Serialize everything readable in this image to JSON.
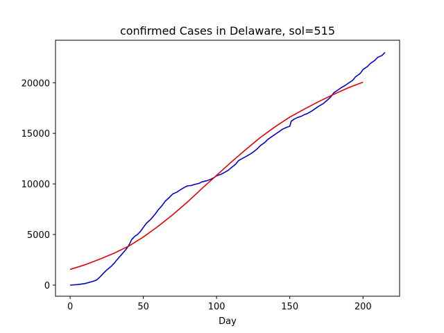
{
  "chart_data": {
    "type": "line",
    "title": "confirmed Cases in Delaware, sol=515",
    "xlabel": "Day",
    "ylabel": "",
    "xlim": [
      -10,
      225
    ],
    "ylim": [
      -1100,
      24200
    ],
    "xticks": [
      0,
      50,
      100,
      150,
      200
    ],
    "yticks": [
      0,
      5000,
      10000,
      15000,
      20000
    ],
    "grid": false,
    "series": [
      {
        "color": "#0000cc",
        "x": [
          0,
          5,
          10,
          15,
          18,
          20,
          22,
          25,
          28,
          30,
          32,
          35,
          38,
          40,
          42,
          44,
          46,
          48,
          50,
          52,
          55,
          58,
          60,
          63,
          65,
          68,
          70,
          73,
          75,
          78,
          80,
          83,
          85,
          88,
          90,
          93,
          95,
          98,
          100,
          103,
          105,
          108,
          110,
          113,
          115,
          118,
          120,
          123,
          125,
          128,
          130,
          133,
          135,
          138,
          140,
          143,
          145,
          148,
          150,
          151,
          153,
          155,
          158,
          160,
          162,
          165,
          168,
          170,
          173,
          175,
          178,
          180,
          183,
          185,
          188,
          190,
          193,
          195,
          198,
          200,
          203,
          205,
          208,
          210,
          213,
          215
        ],
        "y": [
          0,
          50,
          150,
          350,
          500,
          750,
          1050,
          1500,
          1850,
          2150,
          2500,
          3000,
          3500,
          3900,
          4500,
          4800,
          5000,
          5300,
          5700,
          6100,
          6500,
          7000,
          7400,
          7900,
          8300,
          8700,
          9000,
          9200,
          9400,
          9650,
          9800,
          9850,
          9950,
          10050,
          10200,
          10300,
          10400,
          10600,
          10800,
          10950,
          11100,
          11350,
          11600,
          11950,
          12300,
          12550,
          12700,
          12950,
          13150,
          13500,
          13800,
          14100,
          14400,
          14700,
          14900,
          15200,
          15400,
          15600,
          15700,
          16200,
          16400,
          16550,
          16700,
          16850,
          16950,
          17200,
          17500,
          17700,
          17950,
          18200,
          18600,
          19000,
          19300,
          19500,
          19750,
          19950,
          20250,
          20600,
          20900,
          21300,
          21600,
          21900,
          22200,
          22500,
          22700,
          23000
        ]
      },
      {
        "color": "#e00000",
        "x": [
          0,
          10,
          20,
          30,
          40,
          50,
          60,
          70,
          80,
          90,
          100,
          110,
          120,
          130,
          140,
          150,
          160,
          170,
          180,
          190,
          200
        ],
        "y": [
          1550,
          2000,
          2550,
          3150,
          3850,
          4750,
          5800,
          6950,
          8200,
          9550,
          10850,
          12150,
          13400,
          14600,
          15650,
          16600,
          17400,
          18150,
          18850,
          19500,
          20050
        ]
      }
    ]
  }
}
